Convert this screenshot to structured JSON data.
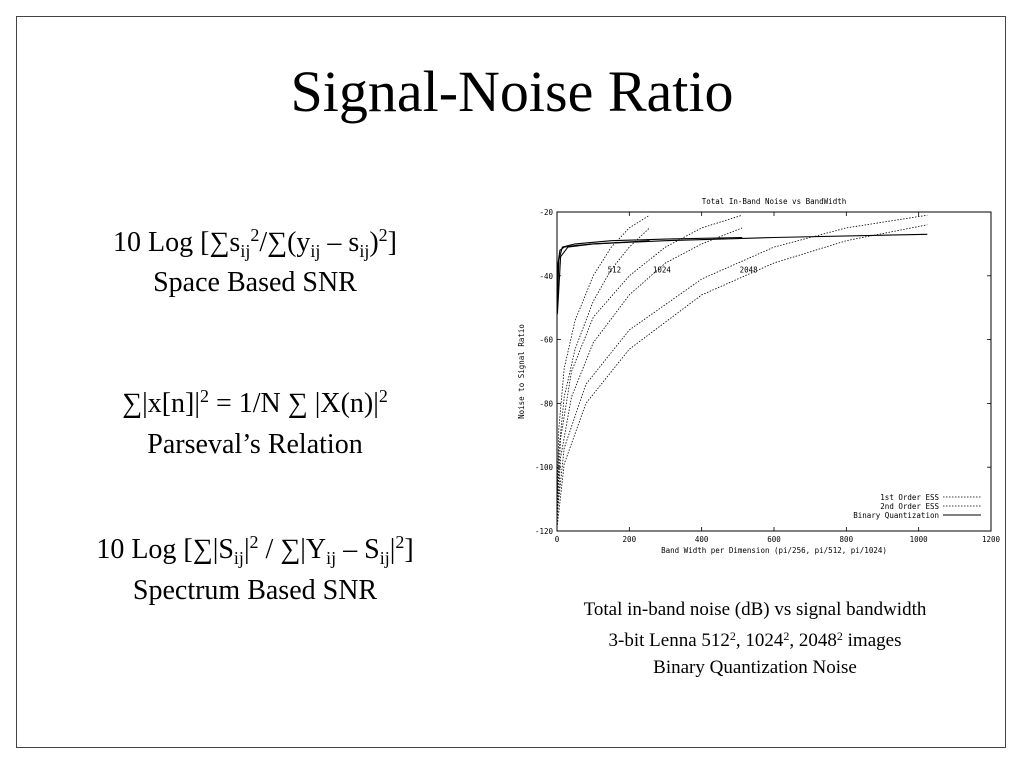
{
  "slide": {
    "title": "Signal-Noise Ratio",
    "formulas": [
      {
        "space_snr": {
          "a": "10 Log [",
          "b": "s",
          "c": "ij",
          "d": "2",
          "e": "/",
          "f": "(y",
          "g": "ij",
          "h": " – s",
          "i": "ij",
          "j": ")",
          "k": "2",
          "l": "]"
        },
        "label": "Space Based SNR"
      },
      {
        "parseval": {
          "a": "|x[n]|",
          "b": "2",
          "c": " = 1/N ",
          "d": " |X(n)|",
          "e": "2"
        },
        "label": "Parseval’s Relation"
      },
      {
        "spectrum_snr": {
          "a": "10 Log [",
          "b": "|S",
          "c": "ij",
          "d": "|",
          "e": "2",
          "f": " / ",
          "g": "|Y",
          "h": "ij",
          "i": " – S",
          "j": "ij",
          "k": "|",
          "l": "2",
          "m": "]"
        },
        "label": "Spectrum Based SNR"
      }
    ],
    "sum_symbol": "∑",
    "caption": {
      "line1": "Total in-band noise (dB) vs signal bandwidth",
      "line2a": "3-bit Lenna 512",
      "line2b": "2",
      "line2c": ", 1024",
      "line2d": "2",
      "line2e": ", 2048",
      "line2f": "2",
      "line2g": " images",
      "line3": "Binary Quantization Noise"
    }
  },
  "chart_data": {
    "type": "line",
    "title": "Total In-Band Noise vs BandWidth",
    "xlabel": "Band Width per Dimension (pi/256, pi/512, pi/1024)",
    "ylabel": "Noise to Signal Ratio",
    "xlim": [
      0,
      1200
    ],
    "ylim": [
      -120,
      -20
    ],
    "xticks": [
      0,
      200,
      400,
      600,
      800,
      1000,
      1200
    ],
    "yticks": [
      -20,
      -40,
      -60,
      -80,
      -100,
      -120
    ],
    "legend_position": "bottom-right",
    "annotations": [
      {
        "text": "512",
        "x": 140,
        "y": -39
      },
      {
        "text": "1024",
        "x": 265,
        "y": -39
      },
      {
        "text": "2048",
        "x": 505,
        "y": -39
      }
    ],
    "series": [
      {
        "name": "1st Order ESS",
        "style": "dotted",
        "group": "512",
        "x": [
          1,
          5,
          20,
          50,
          100,
          150,
          200,
          256
        ],
        "y": [
          -113,
          -95,
          -78,
          -63,
          -48,
          -38,
          -31,
          -25
        ]
      },
      {
        "name": "2nd Order ESS",
        "style": "dotted",
        "group": "512",
        "x": [
          1,
          5,
          20,
          50,
          100,
          150,
          200,
          256
        ],
        "y": [
          -108,
          -88,
          -69,
          -54,
          -40,
          -31,
          -25,
          -21
        ]
      },
      {
        "name": "Binary Quantization",
        "style": "solid",
        "group": "512",
        "x": [
          1,
          3,
          8,
          20,
          50,
          100,
          180,
          256
        ],
        "y": [
          -48,
          -36,
          -32,
          -31,
          -30.5,
          -30,
          -29.5,
          -29
        ]
      },
      {
        "name": "1st Order ESS",
        "style": "dotted",
        "group": "1024",
        "x": [
          1,
          10,
          40,
          100,
          200,
          300,
          400,
          512
        ],
        "y": [
          -116,
          -97,
          -78,
          -61,
          -46,
          -36,
          -30,
          -25
        ]
      },
      {
        "name": "2nd Order ESS",
        "style": "dotted",
        "group": "1024",
        "x": [
          1,
          10,
          40,
          100,
          200,
          300,
          400,
          512
        ],
        "y": [
          -112,
          -91,
          -70,
          -53,
          -40,
          -31,
          -25,
          -21
        ]
      },
      {
        "name": "Binary Quantization",
        "style": "solid",
        "group": "1024",
        "x": [
          1,
          5,
          15,
          50,
          150,
          300,
          512
        ],
        "y": [
          -50,
          -35,
          -31,
          -30,
          -29,
          -28.5,
          -28
        ]
      },
      {
        "name": "1st Order ESS",
        "style": "dotted",
        "group": "2048",
        "x": [
          1,
          20,
          80,
          200,
          400,
          600,
          800,
          1024
        ],
        "y": [
          -118,
          -99,
          -80,
          -63,
          -46,
          -36,
          -29,
          -24
        ]
      },
      {
        "name": "2nd Order ESS",
        "style": "dotted",
        "group": "2048",
        "x": [
          1,
          20,
          80,
          200,
          400,
          600,
          800,
          1024
        ],
        "y": [
          -114,
          -94,
          -74,
          -57,
          -41,
          -31,
          -25,
          -21
        ]
      },
      {
        "name": "Binary Quantization",
        "style": "solid",
        "group": "2048",
        "x": [
          1,
          10,
          30,
          100,
          300,
          600,
          1024
        ],
        "y": [
          -52,
          -34,
          -31,
          -30,
          -29,
          -28,
          -27
        ]
      }
    ],
    "legend": [
      {
        "label": "1st Order ESS",
        "style": "dotted"
      },
      {
        "label": "2nd Order ESS",
        "style": "dotted"
      },
      {
        "label": "Binary Quantization",
        "style": "solid"
      }
    ]
  }
}
